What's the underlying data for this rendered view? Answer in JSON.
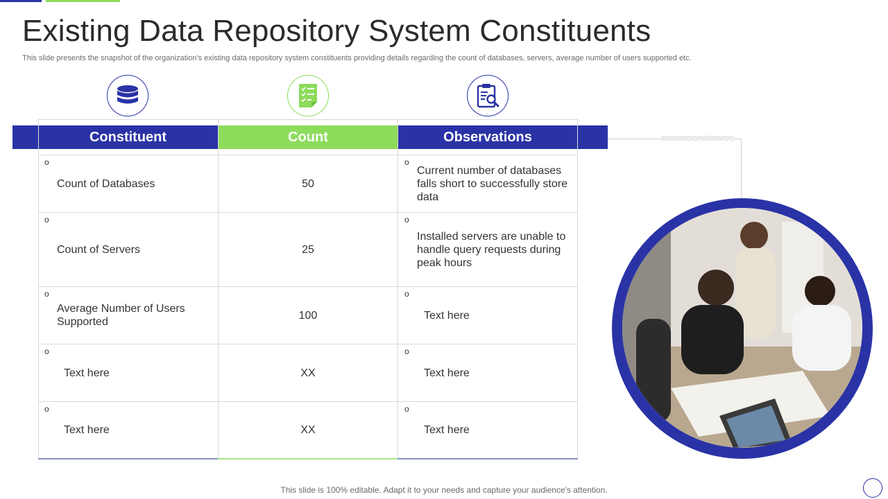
{
  "title": "Existing Data Repository System Constituents",
  "subtitle": "This slide presents the snapshot of the organization’s existing data repository system constituents providing details regarding the count of databases, servers, average number of users supported etc.",
  "colors": {
    "primary": "#2a33a6",
    "accent": "#8ddc5c"
  },
  "icons": [
    "database-icon",
    "checklist-icon",
    "clipboard-search-icon"
  ],
  "table": {
    "headers": [
      "Constituent",
      "Count",
      "Observations"
    ],
    "rows": [
      {
        "constituent": "Count of Databases",
        "count": "50",
        "observation": "Current number of databases falls short to successfully store data"
      },
      {
        "constituent": "Count of Servers",
        "count": "25",
        "observation": "Installed servers are unable to handle query requests during peak hours"
      },
      {
        "constituent": "Average Number of Users Supported",
        "count": "100",
        "observation": "Text here"
      },
      {
        "constituent": "Text here",
        "count": "XX",
        "observation": "Text here"
      },
      {
        "constituent": "Text here",
        "count": "XX",
        "observation": "Text here"
      }
    ]
  },
  "bullet": "o",
  "footer": "This slide is 100% editable. Adapt it to your needs and capture your audience's attention."
}
